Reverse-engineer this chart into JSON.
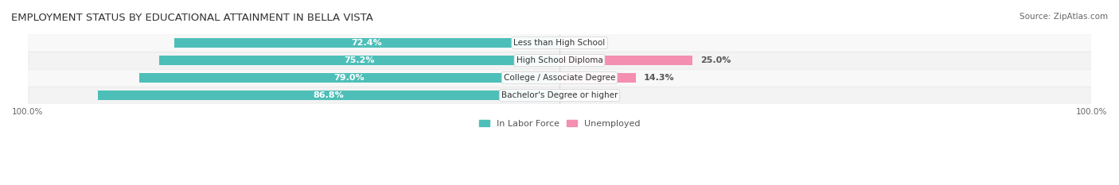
{
  "title": "EMPLOYMENT STATUS BY EDUCATIONAL ATTAINMENT IN BELLA VISTA",
  "source": "Source: ZipAtlas.com",
  "categories": [
    "Less than High School",
    "High School Diploma",
    "College / Associate Degree",
    "Bachelor's Degree or higher"
  ],
  "labor_force_pct": [
    72.4,
    75.2,
    79.0,
    86.8
  ],
  "unemployed_pct": [
    0.0,
    25.0,
    14.3,
    0.0
  ],
  "labor_force_color": "#4DBFB8",
  "unemployed_color": "#F48FB1",
  "bar_bg_color": "#E8E8E8",
  "row_bg_colors": [
    "#F5F5F5",
    "#EEEEEE"
  ],
  "label_color_labor": "#FFFFFF",
  "label_color_unemployed": "#555555",
  "axis_label_left": "100.0%",
  "axis_label_right": "100.0%",
  "bar_height": 0.55,
  "xlim": [
    -100,
    100
  ],
  "title_fontsize": 9.5,
  "source_fontsize": 7.5,
  "bar_label_fontsize": 8,
  "category_fontsize": 7.5,
  "legend_fontsize": 8,
  "axis_tick_fontsize": 7.5
}
